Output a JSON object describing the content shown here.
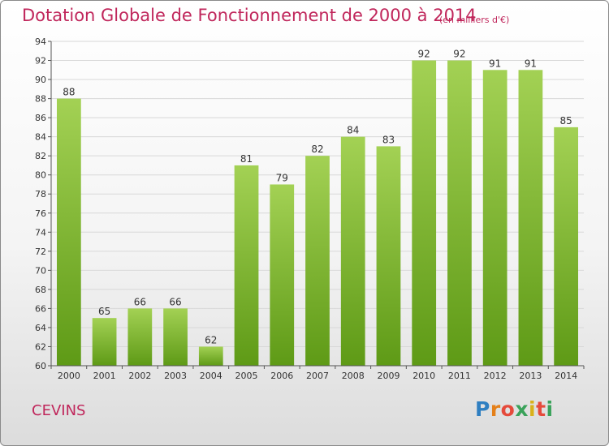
{
  "header": {
    "title": "Dotation Globale de Fonctionnement de 2000 à 2014",
    "subtitle": "(en milliers d'€)"
  },
  "footer": {
    "commune": "CEVINS",
    "logo": "Proxiti"
  },
  "colors": {
    "bar_top": "#a3d154",
    "bar_bottom": "#5e9a16",
    "text_accent": "#c0265b",
    "grid": "#d8d8d8"
  },
  "chart_data": {
    "type": "bar",
    "title": "Dotation Globale de Fonctionnement de 2000 à 2014",
    "subtitle": "(en milliers d'€)",
    "xlabel": "",
    "ylabel": "",
    "categories": [
      "2000",
      "2001",
      "2002",
      "2003",
      "2004",
      "2005",
      "2006",
      "2007",
      "2008",
      "2009",
      "2010",
      "2011",
      "2012",
      "2013",
      "2014"
    ],
    "values": [
      88,
      65,
      66,
      66,
      62,
      81,
      79,
      82,
      84,
      83,
      92,
      92,
      91,
      91,
      85
    ],
    "ylim": [
      60,
      94
    ],
    "yticks": [
      60,
      62,
      64,
      66,
      68,
      70,
      72,
      74,
      76,
      78,
      80,
      82,
      84,
      86,
      88,
      90,
      92,
      94
    ],
    "grid": true,
    "legend": "none",
    "data_labels": true
  }
}
